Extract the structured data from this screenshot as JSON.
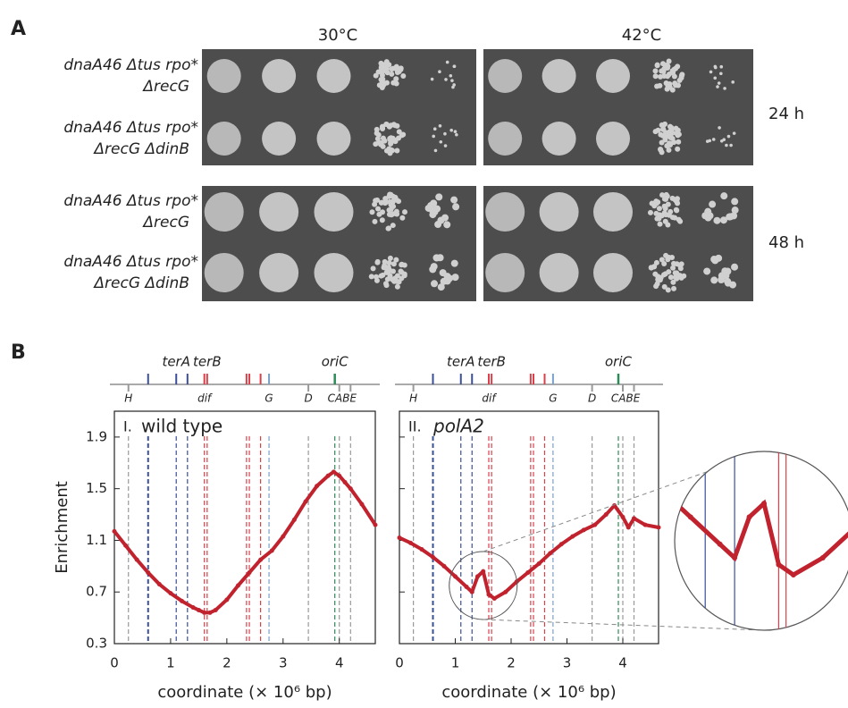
{
  "panel_a": {
    "label": "A",
    "columns": [
      "30°C",
      "42°C"
    ],
    "rows": [
      {
        "line1": "dnaA46 Δtus rpo*",
        "line2": "ΔrecG"
      },
      {
        "line1": "dnaA46 Δtus rpo*",
        "line2": "ΔrecG ΔdinB"
      },
      {
        "line1": "dnaA46 Δtus rpo*",
        "line2": "ΔrecG"
      },
      {
        "line1": "dnaA46 Δtus rpo*",
        "line2": "ΔrecG ΔdinB"
      }
    ],
    "times": [
      "24 h",
      "48 h"
    ]
  },
  "panel_b": {
    "label": "B",
    "y_label": "Enrichment",
    "map_labels": [
      {
        "text": "H",
        "x": 0.25,
        "pos": "below"
      },
      {
        "text": "terA",
        "x": 1.1,
        "pos": "above"
      },
      {
        "text": "terB",
        "x": 1.65,
        "pos": "above"
      },
      {
        "text": "dif",
        "x": 1.6,
        "pos": "below",
        "color": "#8b5a2b"
      },
      {
        "text": "G",
        "x": 2.75,
        "pos": "below"
      },
      {
        "text": "D",
        "x": 3.45,
        "pos": "below"
      },
      {
        "text": "oriC",
        "x": 3.92,
        "pos": "above"
      },
      {
        "text": "CABE",
        "x": 4.05,
        "pos": "below"
      }
    ],
    "markers": [
      {
        "x": 0.25,
        "color": "#999999"
      },
      {
        "x": 0.6,
        "color": "#3a4f9a"
      },
      {
        "x": 1.1,
        "color": "#3a4f9a"
      },
      {
        "x": 1.3,
        "color": "#3a4f9a"
      },
      {
        "x": 1.6,
        "color": "#d9404a"
      },
      {
        "x": 1.65,
        "color": "#d9404a"
      },
      {
        "x": 2.35,
        "color": "#d9404a"
      },
      {
        "x": 2.4,
        "color": "#d9404a"
      },
      {
        "x": 2.6,
        "color": "#d9404a"
      },
      {
        "x": 2.75,
        "color": "#7aa0c8"
      },
      {
        "x": 3.45,
        "color": "#999999"
      },
      {
        "x": 3.92,
        "color": "#2e8b57"
      },
      {
        "x": 4.0,
        "color": "#999999"
      },
      {
        "x": 4.2,
        "color": "#999999"
      }
    ],
    "chart_data": [
      {
        "type": "scatter",
        "panel": "I.",
        "title": "wild type",
        "x_label": "coordinate (× 10⁶ bp)",
        "color": "#c0222e",
        "xlim": [
          0,
          4.64
        ],
        "ylim": [
          0.3,
          2.1
        ],
        "xticks": [
          0,
          1,
          2,
          3,
          4
        ],
        "yticks": [
          0.3,
          0.7,
          1.1,
          1.5,
          1.9
        ],
        "x": [
          0,
          0.2,
          0.4,
          0.6,
          0.8,
          1.0,
          1.2,
          1.4,
          1.5,
          1.6,
          1.7,
          1.8,
          2.0,
          2.2,
          2.4,
          2.6,
          2.8,
          3.0,
          3.2,
          3.4,
          3.6,
          3.8,
          3.9,
          4.0,
          4.1,
          4.2,
          4.4,
          4.64
        ],
        "values": [
          1.17,
          1.06,
          0.95,
          0.85,
          0.76,
          0.69,
          0.63,
          0.58,
          0.56,
          0.54,
          0.54,
          0.56,
          0.64,
          0.75,
          0.85,
          0.95,
          1.02,
          1.13,
          1.26,
          1.4,
          1.52,
          1.6,
          1.63,
          1.6,
          1.55,
          1.5,
          1.38,
          1.22
        ]
      },
      {
        "type": "scatter",
        "panel": "II.",
        "title": "polA2",
        "x_label": "coordinate (× 10⁶ bp)",
        "color": "#c0222e",
        "xlim": [
          0,
          4.64
        ],
        "ylim": [
          0.3,
          2.1
        ],
        "xticks": [
          0,
          1,
          2,
          3,
          4
        ],
        "yticks": [
          0.3,
          0.7,
          1.1,
          1.5,
          1.9
        ],
        "x": [
          0,
          0.2,
          0.4,
          0.6,
          0.8,
          1.0,
          1.2,
          1.3,
          1.4,
          1.5,
          1.6,
          1.7,
          1.9,
          2.1,
          2.3,
          2.5,
          2.7,
          2.9,
          3.1,
          3.3,
          3.5,
          3.7,
          3.85,
          4.0,
          4.1,
          4.2,
          4.4,
          4.64
        ],
        "values": [
          1.12,
          1.08,
          1.03,
          0.97,
          0.9,
          0.82,
          0.74,
          0.7,
          0.82,
          0.86,
          0.68,
          0.65,
          0.7,
          0.78,
          0.85,
          0.92,
          1.0,
          1.07,
          1.13,
          1.18,
          1.22,
          1.3,
          1.37,
          1.28,
          1.2,
          1.27,
          1.22,
          1.2
        ]
      }
    ]
  }
}
